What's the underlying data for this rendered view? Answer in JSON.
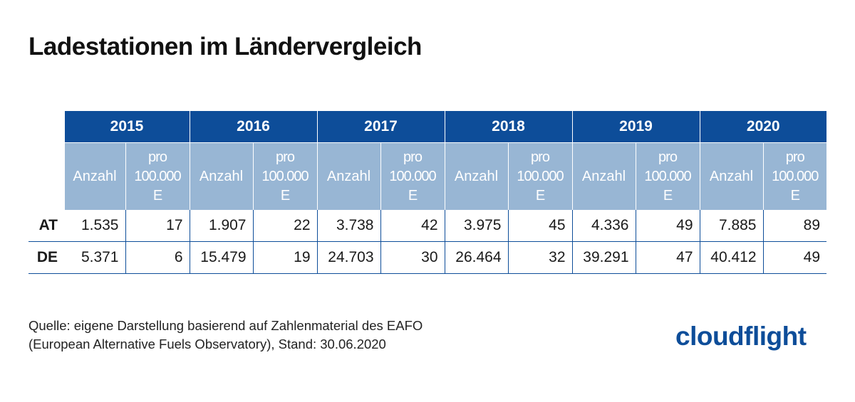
{
  "title": "Ladestationen im Ländervergleich",
  "table": {
    "years": [
      "2015",
      "2016",
      "2017",
      "2018",
      "2019",
      "2020"
    ],
    "sub_headers": {
      "count": "Anzahl",
      "per_line1": "pro",
      "per_line2": "100.000",
      "per_line3": "E"
    },
    "rows": [
      {
        "label": "AT",
        "values": [
          "1.535",
          "17",
          "1.907",
          "22",
          "3.738",
          "42",
          "3.975",
          "45",
          "4.336",
          "49",
          "7.885",
          "89"
        ]
      },
      {
        "label": "DE",
        "values": [
          "5.371",
          "6",
          "15.479",
          "19",
          "24.703",
          "30",
          "26.464",
          "32",
          "39.291",
          "47",
          "40.412",
          "49"
        ]
      }
    ]
  },
  "source": {
    "line1": "Quelle: eigene Darstellung basierend auf Zahlenmaterial des EAFO",
    "line2": "(European Alternative Fuels Observatory), Stand: 30.06.2020"
  },
  "logo": {
    "text": "cloudflight"
  },
  "colors": {
    "header_dark": "#0d4d99",
    "header_light": "#98b6d4"
  }
}
